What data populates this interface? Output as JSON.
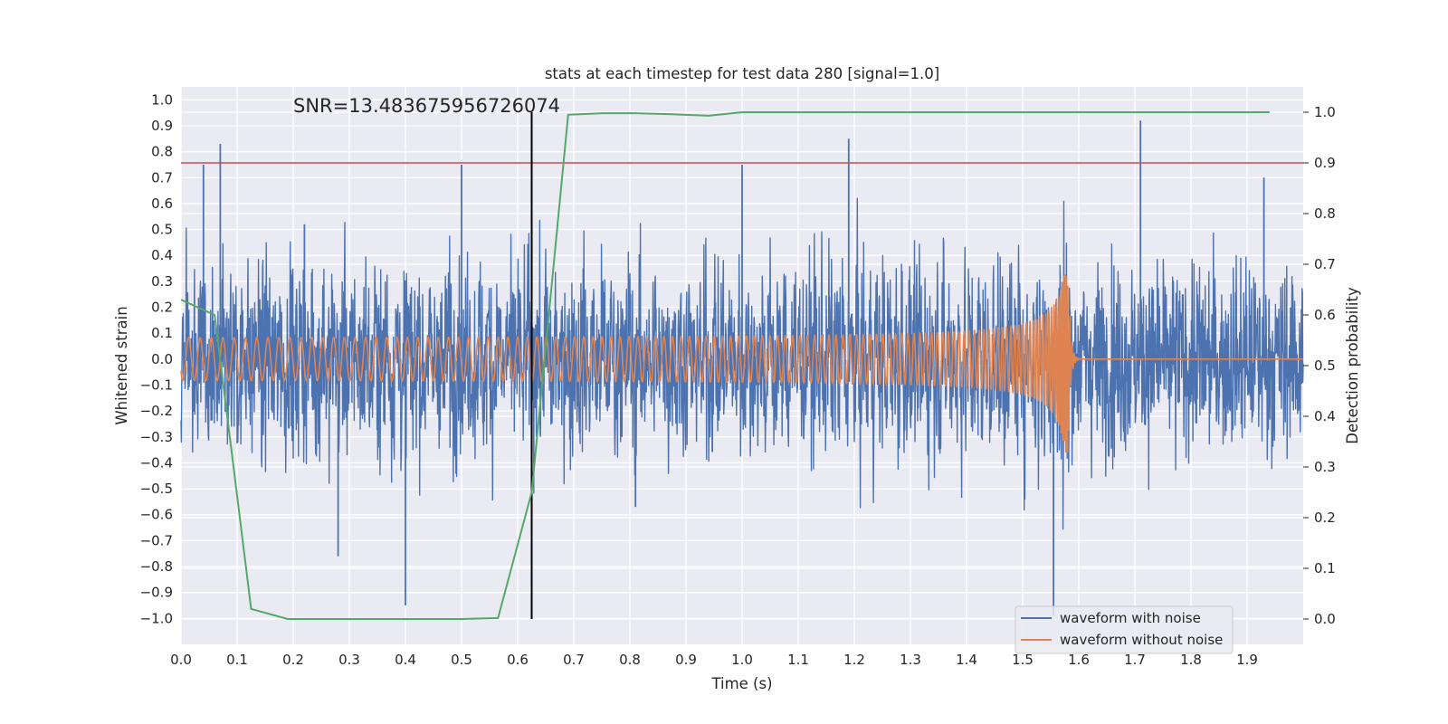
{
  "chart_data": {
    "type": "line",
    "title": "stats at each timestep for test data 280 [signal=1.0]",
    "xlabel": "Time (s)",
    "ylabel": "Whitened strain",
    "y2label": "Detection probability",
    "xlim": [
      0.0,
      2.0
    ],
    "ylim": [
      -1.1,
      1.05
    ],
    "y2lim": [
      -0.05,
      1.05
    ],
    "xticks": [
      "0.0",
      "0.1",
      "0.2",
      "0.3",
      "0.4",
      "0.5",
      "0.6",
      "0.7",
      "0.8",
      "0.9",
      "1.0",
      "1.1",
      "1.2",
      "1.3",
      "1.4",
      "1.5",
      "1.6",
      "1.7",
      "1.8",
      "1.9"
    ],
    "yticks": [
      "1.0",
      "0.9",
      "0.8",
      "0.7",
      "0.6",
      "0.5",
      "0.4",
      "0.3",
      "0.2",
      "0.1",
      "0.0",
      "−0.1",
      "−0.2",
      "−0.3",
      "−0.4",
      "−0.5",
      "−0.6",
      "−0.7",
      "−0.8",
      "−0.9",
      "−1.0"
    ],
    "y2ticks": [
      "1.0",
      "0.9",
      "0.8",
      "0.7",
      "0.6",
      "0.5",
      "0.4",
      "0.3",
      "0.2",
      "0.1",
      "0.0"
    ],
    "grid": true,
    "legend_position": "lower-right",
    "annotation": "SNR=13.483675956726074",
    "threshold_y2": 0.9,
    "marker_time": 0.625,
    "colors": {
      "noisy": "#4c72b0",
      "clean": "#dd8452",
      "probability": "#55a868",
      "threshold": "#c44e52",
      "marker": "#000000",
      "panel": "#eaeaf2",
      "grid": "#ffffff"
    },
    "series": [
      {
        "name": "waveform with noise",
        "kind": "noise",
        "amplitude_typical": 0.3,
        "extremes": [
          [
            0.07,
            0.83
          ],
          [
            0.04,
            0.75
          ],
          [
            0.5,
            0.75
          ],
          [
            0.4,
            -0.95
          ],
          [
            1.19,
            0.85
          ],
          [
            1.0,
            0.75
          ],
          [
            1.555,
            -0.99
          ],
          [
            1.71,
            0.92
          ],
          [
            1.93,
            0.7
          ],
          [
            0.22,
            0.52
          ],
          [
            0.81,
            -0.57
          ],
          [
            0.28,
            -0.76
          ]
        ]
      },
      {
        "name": "waveform without noise",
        "kind": "chirp",
        "amplitude_start": 0.08,
        "amplitude_peak": 0.45,
        "merger_time": 1.58,
        "frequency_start_hz": 30
      },
      {
        "name": "detection probability",
        "kind": "probability",
        "x": [
          0.0,
          0.06,
          0.125,
          0.19,
          0.25,
          0.31,
          0.375,
          0.44,
          0.5,
          0.565,
          0.625,
          0.69,
          0.75,
          0.81,
          0.875,
          0.94,
          1.0,
          1.06,
          1.125,
          1.19,
          1.25,
          1.31,
          1.375,
          1.44,
          1.5,
          1.56,
          1.625,
          1.69,
          1.75,
          1.81,
          1.875,
          1.94
        ],
        "y": [
          0.63,
          0.6,
          0.02,
          0.0,
          0.0,
          0.0,
          0.0,
          0.0,
          0.0,
          0.002,
          0.25,
          0.995,
          0.998,
          0.998,
          0.996,
          0.993,
          1.0,
          1.0,
          1.0,
          1.0,
          1.0,
          1.0,
          1.0,
          1.0,
          1.0,
          1.0,
          1.0,
          1.0,
          1.0,
          1.0,
          1.0,
          1.0
        ]
      }
    ]
  }
}
